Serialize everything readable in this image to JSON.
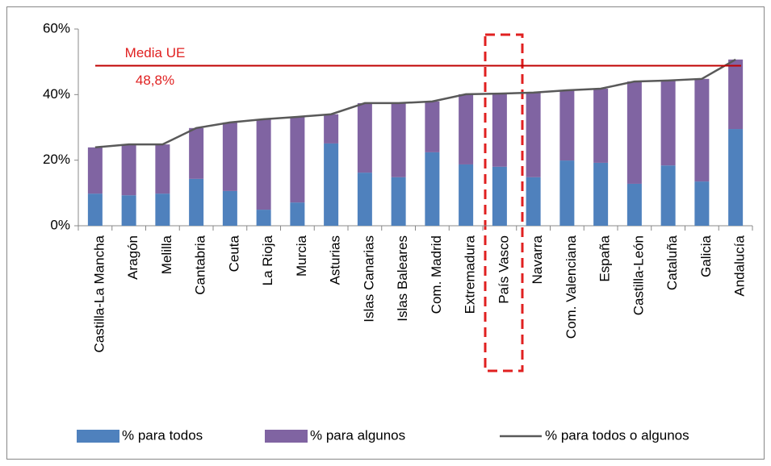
{
  "chart_data": {
    "type": "stacked_bar_line",
    "categories": [
      "Castilla-La Mancha",
      "Aragón",
      "Melilla",
      "Cantabria",
      "Ceuta",
      "La Rioja",
      "Murcia",
      "Asturias",
      "Islas Canarias",
      "Islas Baleares",
      "Com. Madrid",
      "Extremadura",
      "País Vasco",
      "Navarra",
      "Com. Valenciana",
      "España",
      "Castilla-León",
      "Cataluña",
      "Galicia",
      "Andalucía"
    ],
    "series": [
      {
        "name": "% para todos",
        "color": "#4f81bd",
        "kind": "bar",
        "values": [
          9.8,
          9.3,
          9.8,
          14.3,
          10.6,
          4.9,
          7.1,
          25.1,
          16.2,
          14.8,
          22.4,
          18.7,
          18.0,
          14.8,
          19.9,
          19.2,
          12.8,
          18.4,
          13.5,
          29.5
        ]
      },
      {
        "name": "% para algunos",
        "color": "#8064a2",
        "kind": "bar",
        "values": [
          14.1,
          15.5,
          15.0,
          15.5,
          20.9,
          27.6,
          26.1,
          8.9,
          21.2,
          22.6,
          15.5,
          21.4,
          22.3,
          25.8,
          21.4,
          22.6,
          31.2,
          25.9,
          31.3,
          21.2
        ]
      },
      {
        "name": "% para todos o algunos",
        "color": "#595959",
        "kind": "line",
        "values": [
          23.9,
          24.8,
          24.8,
          29.8,
          31.5,
          32.5,
          33.2,
          34.0,
          37.4,
          37.4,
          37.9,
          40.1,
          40.3,
          40.6,
          41.3,
          41.8,
          44.0,
          44.3,
          44.8,
          50.7
        ]
      }
    ],
    "reference_line": {
      "label": "Media UE",
      "value": 48.8,
      "value_label": "48,8%",
      "color": "#c00000"
    },
    "ylim": [
      0,
      60
    ],
    "yticks": [
      {
        "value": 0,
        "label": "0%"
      },
      {
        "value": 20,
        "label": "20%"
      },
      {
        "value": 40,
        "label": "40%"
      },
      {
        "value": 60,
        "label": "60%"
      }
    ]
  }
}
